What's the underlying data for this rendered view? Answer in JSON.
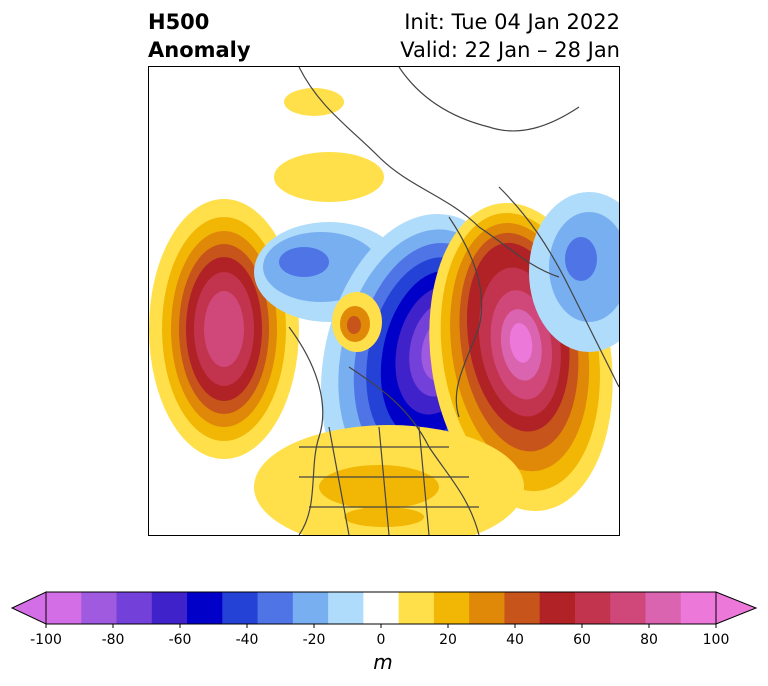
{
  "title": {
    "left_line1": "H500",
    "left_line2": "Anomaly",
    "right_line1": "Init: Tue 04 Jan 2022",
    "right_line2": "Valid: 22 Jan – 28 Jan"
  },
  "colorbar": {
    "unit": "m",
    "extend": "both",
    "levels": [
      -100,
      -90,
      -80,
      -70,
      -60,
      -50,
      -40,
      -30,
      -20,
      -10,
      10,
      20,
      30,
      40,
      50,
      60,
      70,
      80,
      90,
      100
    ],
    "colors": [
      "#d46ee6",
      "#a05adf",
      "#7340d9",
      "#3f22c9",
      "#0000c8",
      "#2442d6",
      "#4f74e6",
      "#78aff0",
      "#afdcfb",
      "#ffffff",
      "#ffe04a",
      "#f2b705",
      "#e08808",
      "#c7541a",
      "#b02226",
      "#c2334e",
      "#d0487a",
      "#da64b0",
      "#ec78da"
    ],
    "ticks": [
      "-100",
      "-80",
      "-60",
      "-40",
      "-20",
      "0",
      "20",
      "40",
      "60",
      "80",
      "100"
    ]
  }
}
